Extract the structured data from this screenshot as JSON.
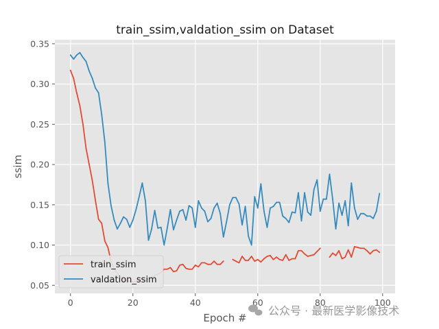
{
  "chart_data": {
    "type": "line",
    "title": "train_ssim,valdation_ssim on Dataset",
    "xlabel": "Epoch #",
    "ylabel": "ssim",
    "xlim": [
      -5,
      104
    ],
    "ylim": [
      0.04,
      0.355
    ],
    "xticks": [
      0,
      20,
      40,
      60,
      80,
      100
    ],
    "yticks": [
      0.05,
      0.1,
      0.15,
      0.2,
      0.25,
      0.3,
      0.35
    ],
    "grid": true,
    "legend": "lower left",
    "series": [
      {
        "name": "train_ssim",
        "color": "#E24A33",
        "x": [
          0,
          1,
          2,
          3,
          4,
          5,
          6,
          7,
          8,
          9,
          10,
          11,
          12,
          13,
          14,
          15,
          16,
          17,
          18,
          19,
          20,
          21,
          22,
          23,
          24,
          25,
          26,
          27,
          28,
          29,
          30,
          31,
          32,
          33,
          34,
          35,
          36,
          37,
          38,
          39,
          40,
          41,
          42,
          43,
          44,
          45,
          46,
          47,
          48,
          49,
          50,
          52,
          53,
          54,
          55,
          56,
          57,
          58,
          59,
          60,
          61,
          62,
          63,
          64,
          65,
          66,
          67,
          68,
          69,
          70,
          71,
          72,
          73,
          74,
          75,
          76,
          77,
          78,
          79,
          80,
          82,
          83,
          84,
          85,
          86,
          87,
          88,
          89,
          90,
          91,
          92,
          93,
          94,
          95,
          96,
          97,
          98,
          99
        ],
        "values": [
          0.317,
          0.307,
          0.289,
          0.273,
          0.25,
          0.22,
          0.2,
          0.18,
          0.155,
          0.132,
          0.127,
          0.105,
          0.097,
          0.08,
          0.07,
          0.065,
          0.06,
          0.057,
          0.056,
          0.055,
          0.054,
          0.055,
          0.056,
          0.058,
          0.057,
          0.058,
          0.06,
          0.062,
          0.064,
          0.066,
          0.07,
          0.07,
          0.072,
          0.067,
          0.068,
          0.075,
          0.076,
          0.071,
          0.07,
          0.07,
          0.075,
          0.073,
          0.078,
          0.078,
          0.076,
          0.076,
          0.08,
          0.076,
          0.076,
          0.08,
          null,
          0.082,
          0.08,
          0.078,
          0.086,
          0.081,
          0.081,
          0.086,
          0.08,
          0.082,
          0.079,
          0.083,
          0.086,
          0.087,
          0.082,
          0.085,
          0.082,
          0.081,
          0.088,
          0.081,
          0.083,
          0.083,
          0.093,
          0.093,
          0.089,
          0.086,
          0.087,
          0.088,
          0.092,
          0.096,
          null,
          0.085,
          0.09,
          0.087,
          0.093,
          0.083,
          0.085,
          0.094,
          0.085,
          0.098,
          0.097,
          0.096,
          0.096,
          0.093,
          0.089,
          0.093,
          0.094,
          0.091
        ]
      },
      {
        "name": "valdation_ssim",
        "color": "#348ABD",
        "x": [
          0,
          1,
          2,
          3,
          4,
          5,
          6,
          7,
          8,
          9,
          10,
          11,
          12,
          13,
          14,
          15,
          16,
          17,
          18,
          19,
          20,
          21,
          22,
          23,
          24,
          25,
          26,
          27,
          28,
          29,
          30,
          31,
          32,
          33,
          34,
          35,
          36,
          37,
          38,
          39,
          40,
          41,
          42,
          43,
          44,
          45,
          46,
          47,
          48,
          49,
          50,
          51,
          52,
          53,
          54,
          55,
          56,
          57,
          58,
          59,
          60,
          61,
          62,
          63,
          64,
          65,
          66,
          67,
          68,
          69,
          70,
          71,
          72,
          73,
          74,
          75,
          76,
          77,
          78,
          79,
          80,
          81,
          82,
          83,
          84,
          85,
          86,
          87,
          88,
          89,
          90,
          91,
          92,
          93,
          94,
          95,
          96,
          97,
          98,
          99
        ],
        "values": [
          0.336,
          0.331,
          0.336,
          0.339,
          0.333,
          0.328,
          0.316,
          0.307,
          0.295,
          0.289,
          0.262,
          0.228,
          0.177,
          0.149,
          0.131,
          0.12,
          0.127,
          0.135,
          0.132,
          0.122,
          0.131,
          0.144,
          0.16,
          0.177,
          0.155,
          0.106,
          0.12,
          0.143,
          0.121,
          0.122,
          0.1,
          0.121,
          0.144,
          0.119,
          0.131,
          0.142,
          0.144,
          0.131,
          0.149,
          0.146,
          0.122,
          0.155,
          0.146,
          0.142,
          0.129,
          0.133,
          0.146,
          0.152,
          0.139,
          0.11,
          0.129,
          0.15,
          0.159,
          0.159,
          0.151,
          0.125,
          0.148,
          0.111,
          0.1,
          0.16,
          0.146,
          0.176,
          0.142,
          0.122,
          0.146,
          0.148,
          0.153,
          0.153,
          0.136,
          0.133,
          0.128,
          0.141,
          0.14,
          0.165,
          0.13,
          0.165,
          0.141,
          0.137,
          0.169,
          0.181,
          0.142,
          0.157,
          0.157,
          0.188,
          0.157,
          0.12,
          0.152,
          0.137,
          0.155,
          0.124,
          0.177,
          0.146,
          0.132,
          0.139,
          0.139,
          0.136,
          0.136,
          0.133,
          0.142,
          0.164
        ]
      }
    ]
  },
  "watermark": {
    "text": "公众号 · 最新医学影像技术",
    "icon": "wechat-icon"
  }
}
